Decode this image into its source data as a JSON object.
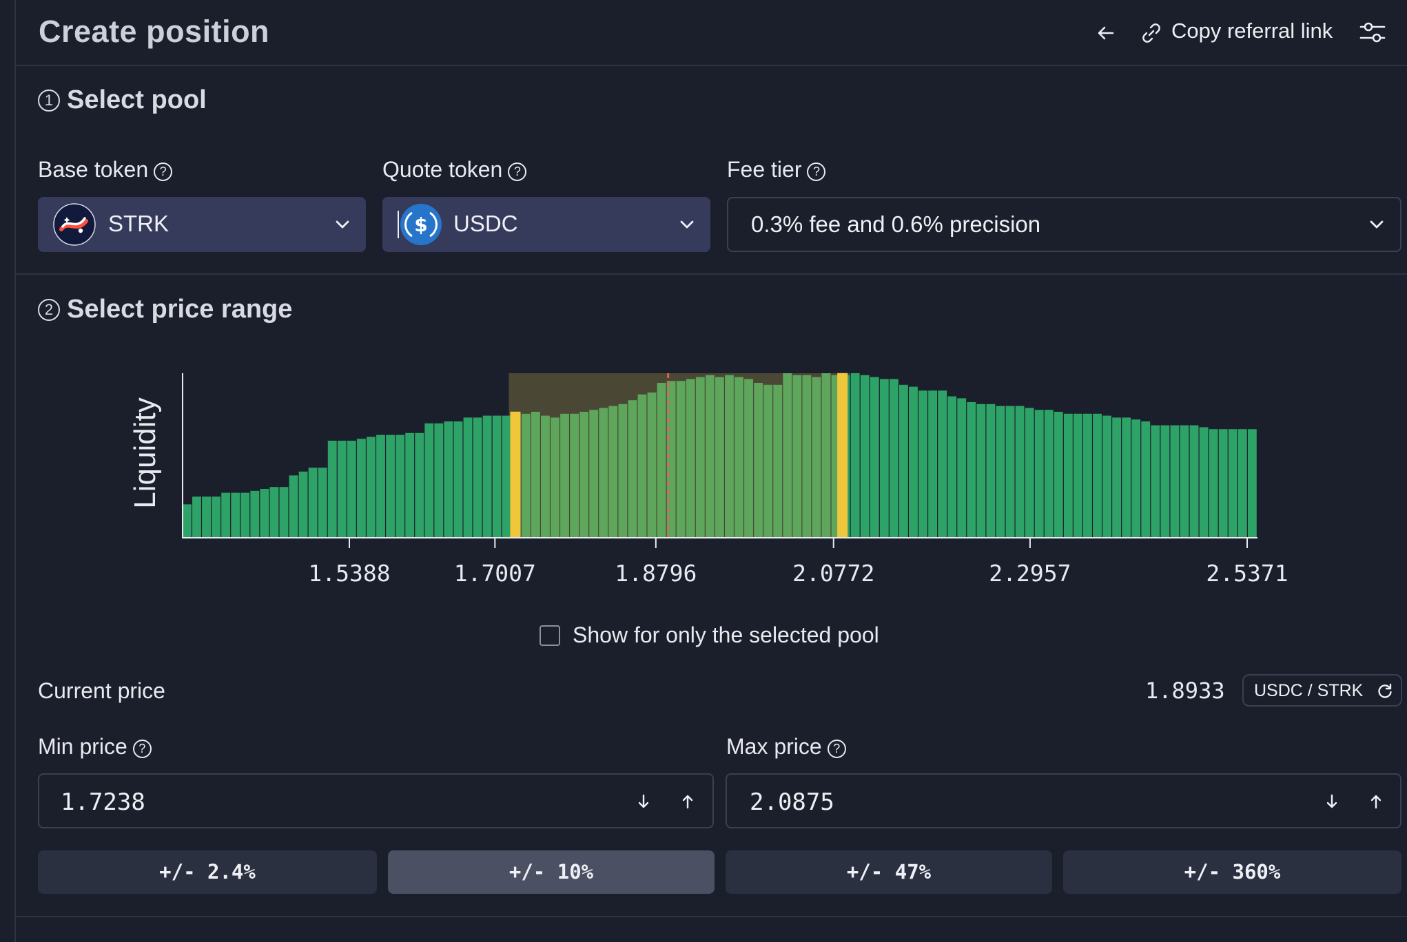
{
  "header": {
    "title": "Create position",
    "copy_referral_label": "Copy referral link"
  },
  "step1": {
    "number": "1",
    "title": "Select pool",
    "base_token": {
      "label": "Base token",
      "value": "STRK"
    },
    "quote_token": {
      "label": "Quote token",
      "value": "USDC"
    },
    "fee_tier": {
      "label": "Fee tier",
      "value": "0.3% fee and 0.6% precision"
    }
  },
  "step2": {
    "number": "2",
    "title": "Select price range",
    "show_selected_only_label": "Show for only the selected pool",
    "current_price_label": "Current price",
    "current_price_value": "1.8933",
    "pair_label": "USDC / STRK",
    "min_price": {
      "label": "Min price",
      "value": "1.7238"
    },
    "max_price": {
      "label": "Max price",
      "value": "2.0875"
    },
    "range_buttons": [
      {
        "label": "+/- 2.4%",
        "active": false
      },
      {
        "label": "+/- 10%",
        "active": true
      },
      {
        "label": "+/- 47%",
        "active": false
      },
      {
        "label": "+/- 360%",
        "active": false
      }
    ]
  },
  "colors": {
    "bar": "#2ea367",
    "bar_in_range": "#5da65c",
    "range_handle": "#f0c63a",
    "current_price_line": "#e0605a",
    "range_overlay": "#4a4735"
  },
  "chart_data": {
    "type": "bar",
    "ylabel": "Liquidity",
    "x_tick_labels": [
      "1.5388",
      "1.7007",
      "1.8796",
      "2.0772",
      "2.2957",
      "2.5371"
    ],
    "x_tick_values": [
      1.5388,
      1.7007,
      1.8796,
      2.0772,
      2.2957,
      2.5371
    ],
    "x_range": [
      1.3885,
      2.5371
    ],
    "selected_range": [
      1.7238,
      2.0875
    ],
    "current_price": 1.8933,
    "values": [
      17,
      21,
      21,
      21,
      23,
      23,
      23,
      24,
      25,
      26,
      26,
      32,
      34,
      36,
      36,
      50,
      50,
      50,
      51,
      52,
      53,
      53,
      53,
      54,
      54,
      59,
      59,
      60,
      60,
      62,
      62,
      63,
      63,
      63,
      64,
      64,
      65,
      63,
      62,
      64,
      64,
      65,
      66,
      67,
      68,
      69,
      71,
      74,
      75,
      80,
      81,
      81,
      82,
      83,
      84,
      83,
      84,
      83,
      82,
      80,
      79,
      79,
      85,
      84,
      84,
      83,
      85,
      84,
      84,
      85,
      84,
      83,
      82,
      82,
      79,
      78,
      76,
      76,
      76,
      73,
      72,
      70,
      69,
      69,
      68,
      68,
      68,
      67,
      66,
      66,
      65,
      64,
      64,
      64,
      64,
      63,
      62,
      62,
      61,
      60,
      58,
      58,
      58,
      58,
      58,
      57,
      56,
      56,
      56,
      56,
      56
    ]
  }
}
